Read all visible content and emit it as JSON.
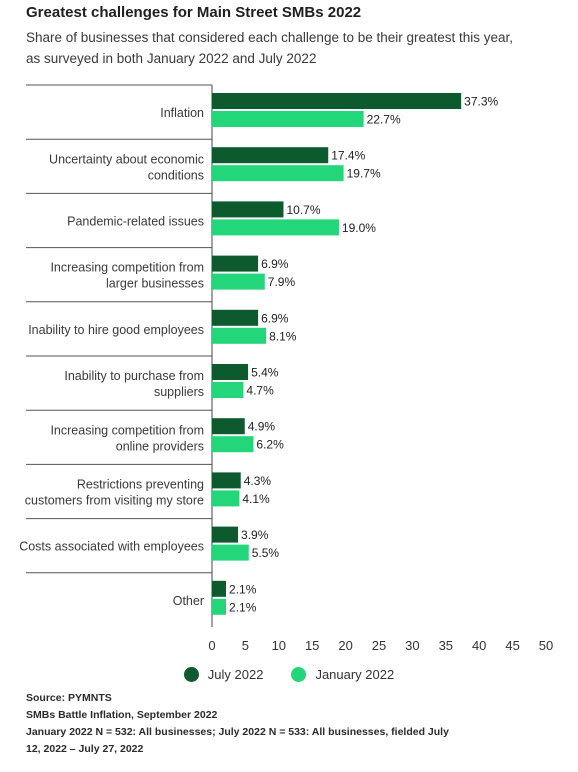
{
  "header": {
    "title": "Greatest challenges for Main Street SMBs 2022",
    "subtitle_line1": "Share of businesses that considered each challenge to be their greatest this year,",
    "subtitle_line2": "as surveyed in both January 2022 and July 2022"
  },
  "colors": {
    "july": "#0d5a2e",
    "january": "#24d67a",
    "axis": "#444444",
    "divider": "#555555"
  },
  "chart_data": {
    "type": "bar",
    "orientation": "horizontal",
    "title": "Greatest challenges for Main Street SMBs 2022",
    "categories": [
      [
        "Inflation"
      ],
      [
        "Uncertainty about economic",
        "conditions"
      ],
      [
        "Pandemic-related issues"
      ],
      [
        "Increasing competition from",
        "larger businesses"
      ],
      [
        "Inability to hire good employees"
      ],
      [
        "Inability to purchase from",
        "suppliers"
      ],
      [
        "Increasing competition from",
        "online providers"
      ],
      [
        "Restrictions preventing",
        "customers from visiting my store"
      ],
      [
        "Costs associated with employees"
      ],
      [
        "Other"
      ]
    ],
    "series": [
      {
        "name": "July 2022",
        "values": [
          37.3,
          17.4,
          10.7,
          6.9,
          6.9,
          5.4,
          4.9,
          4.3,
          3.9,
          2.1
        ]
      },
      {
        "name": "January 2022",
        "values": [
          22.7,
          19.7,
          19.0,
          7.9,
          8.1,
          4.7,
          6.2,
          4.1,
          5.5,
          2.1
        ]
      }
    ],
    "value_suffix": "%",
    "xlim": [
      0,
      50
    ],
    "xticks": [
      0,
      5,
      10,
      15,
      20,
      25,
      30,
      35,
      40,
      45,
      50
    ],
    "grid": false,
    "legend_position": "bottom"
  },
  "footer": {
    "source": "Source: PYMNTS",
    "report": "SMBs Battle Inflation, September 2022",
    "sample_line1": "January 2022 N = 532: All businesses; July 2022 N = 533: All businesses, fielded July",
    "sample_line2": "12, 2022 – July 27, 2022"
  }
}
